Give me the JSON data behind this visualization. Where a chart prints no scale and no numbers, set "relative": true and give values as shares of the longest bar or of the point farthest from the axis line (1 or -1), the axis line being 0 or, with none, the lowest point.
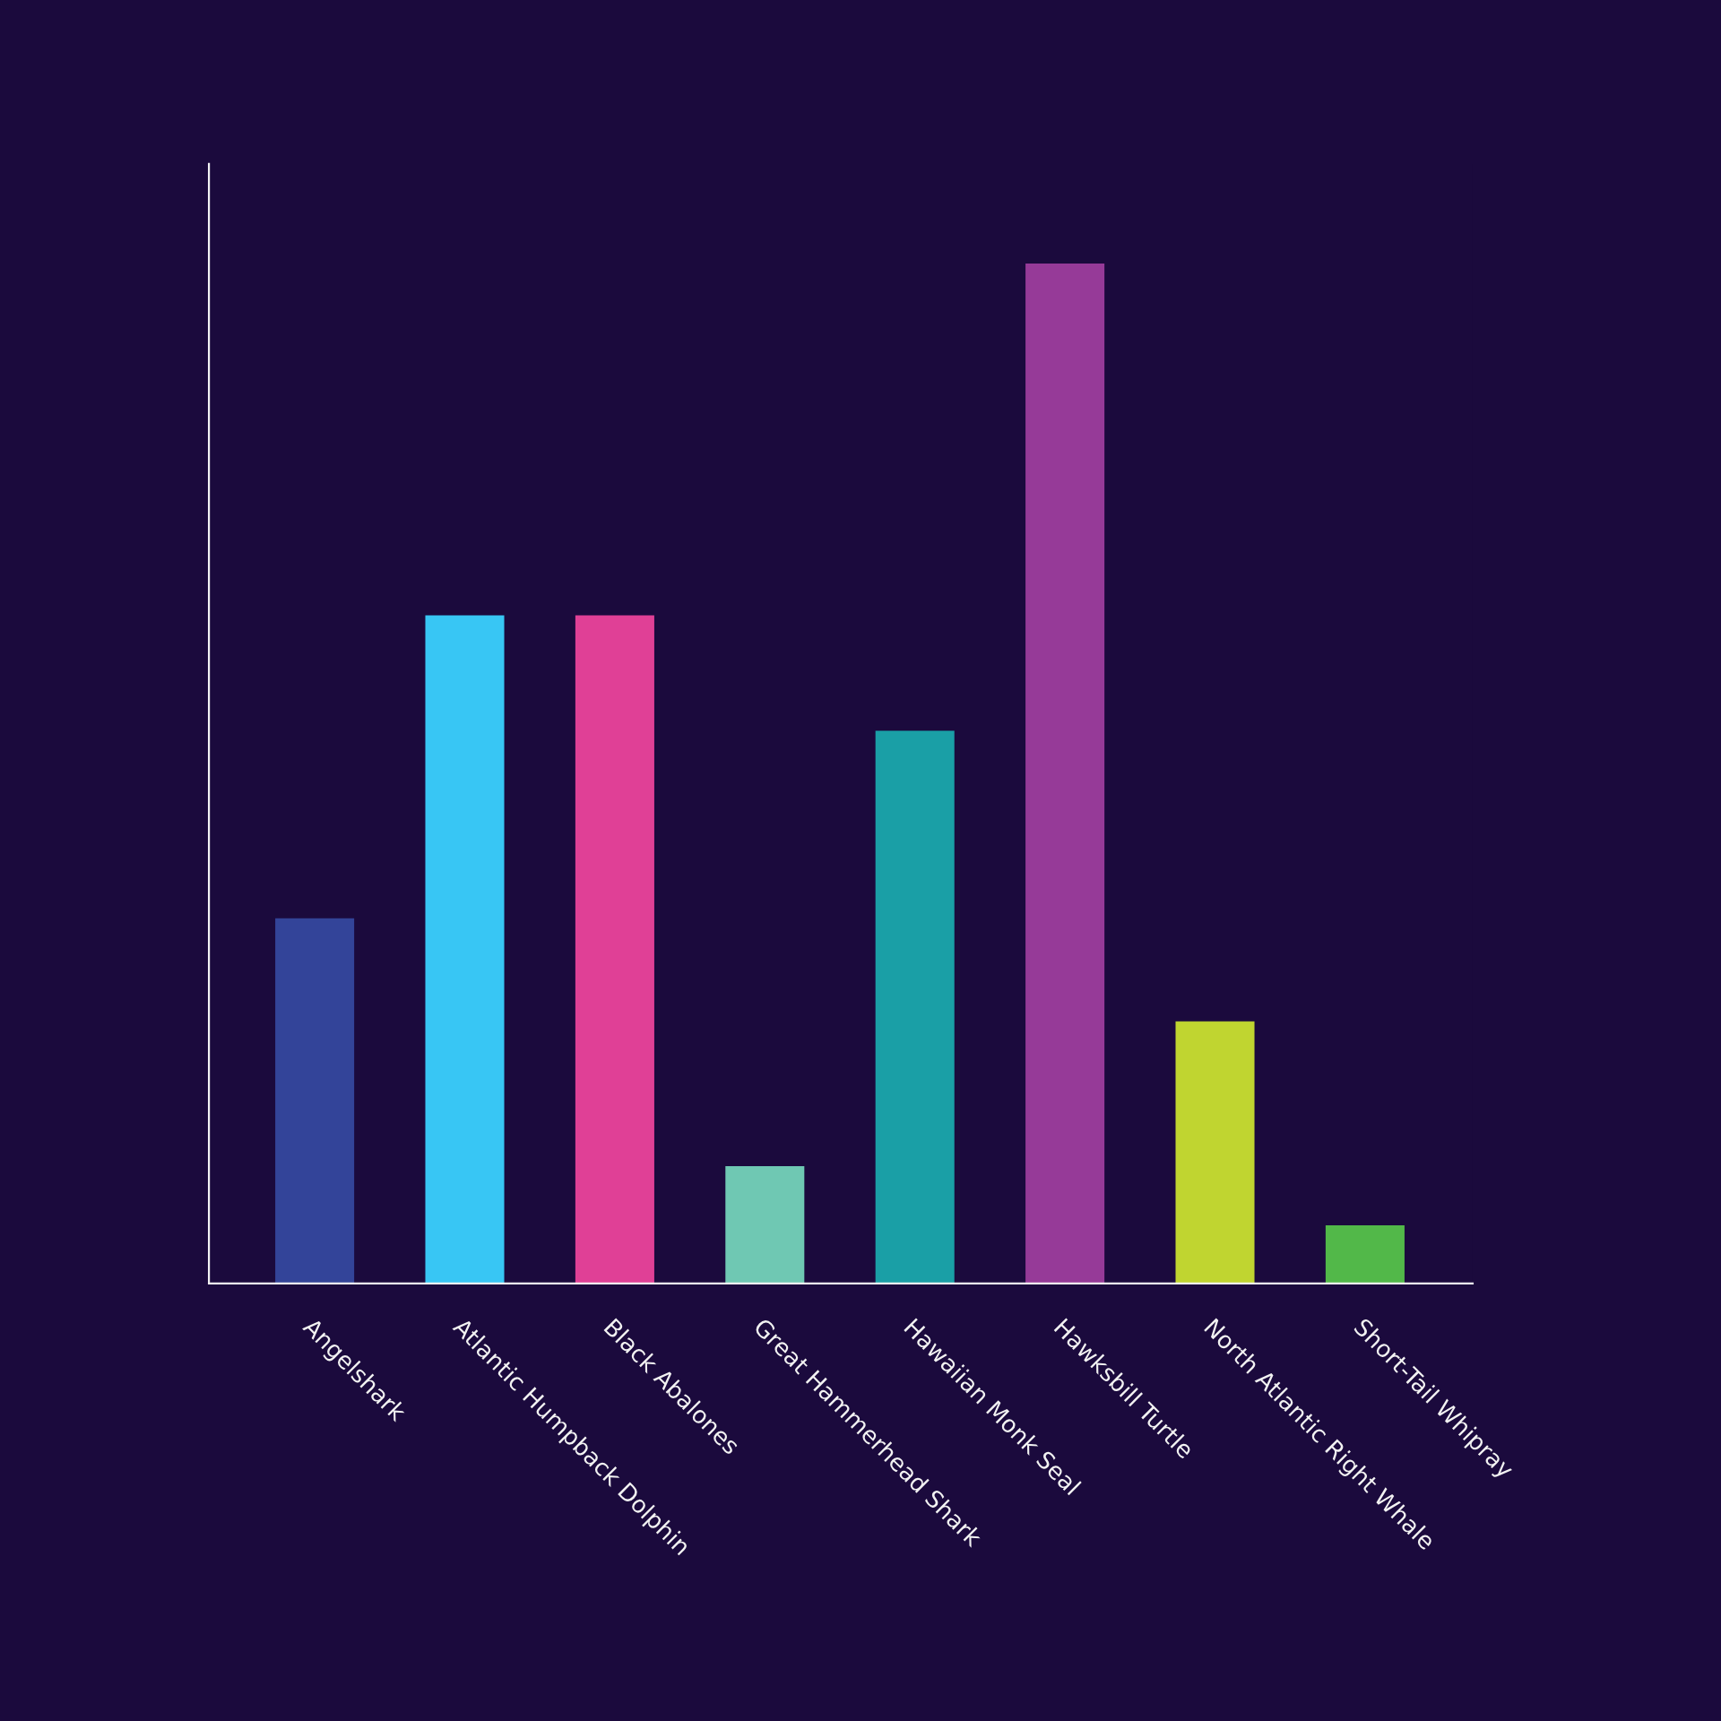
{
  "chart_data": {
    "type": "bar",
    "relative": true,
    "tick_labels": "x",
    "categories": [
      "Angelshark",
      "Atlantic Humpback Dolphin",
      "Black Abalones",
      "Great Hammerhead Shark",
      "Hawaiian Monk Seal",
      "Hawksbill Turtle",
      "North Atlantic Right Whale",
      "Short-Tail Whipray"
    ],
    "values": [
      0.358,
      0.655,
      0.655,
      0.115,
      0.542,
      1,
      0.257,
      0.057
    ],
    "colors": [
      "#334499",
      "#38c6f4",
      "#e04096",
      "#6fc8b3",
      "#1a9fa6",
      "#963a98",
      "#c0d530",
      "#52b849"
    ]
  }
}
